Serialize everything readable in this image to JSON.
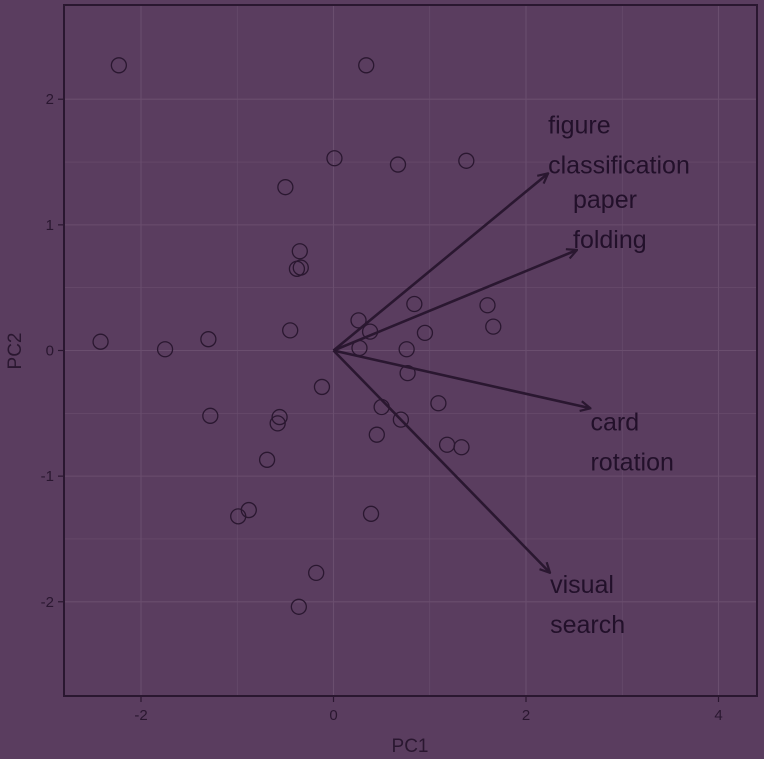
{
  "colors": {
    "background": "#5a3d5f",
    "panel": "#5a3d5f",
    "grid": "#6a4e6e",
    "ink": "#2a1730"
  },
  "chart_data": {
    "type": "scatter",
    "title": "",
    "xlabel": "PC1",
    "ylabel": "PC2",
    "xlim": [
      -2.8,
      4.4
    ],
    "ylim": [
      -2.75,
      2.75
    ],
    "xticks": [
      -2,
      0,
      2,
      4
    ],
    "yticks": [
      -2,
      -1,
      0,
      1,
      2
    ],
    "grid": true,
    "legend": "none",
    "points": [
      {
        "x": -2.23,
        "y": 2.27
      },
      {
        "x": 0.34,
        "y": 2.27
      },
      {
        "x": 0.01,
        "y": 1.53
      },
      {
        "x": 0.67,
        "y": 1.48
      },
      {
        "x": 1.38,
        "y": 1.51
      },
      {
        "x": -0.5,
        "y": 1.3
      },
      {
        "x": -0.35,
        "y": 0.79
      },
      {
        "x": -0.38,
        "y": 0.65
      },
      {
        "x": -0.34,
        "y": 0.66
      },
      {
        "x": 0.84,
        "y": 0.37
      },
      {
        "x": 1.6,
        "y": 0.36
      },
      {
        "x": 1.66,
        "y": 0.19
      },
      {
        "x": 0.26,
        "y": 0.24
      },
      {
        "x": 0.38,
        "y": 0.15
      },
      {
        "x": 0.95,
        "y": 0.14
      },
      {
        "x": -0.45,
        "y": 0.16
      },
      {
        "x": -2.42,
        "y": 0.07
      },
      {
        "x": -1.75,
        "y": 0.01
      },
      {
        "x": -1.3,
        "y": 0.09
      },
      {
        "x": 0.27,
        "y": 0.02
      },
      {
        "x": 0.76,
        "y": 0.01
      },
      {
        "x": -0.12,
        "y": -0.29
      },
      {
        "x": 0.77,
        "y": -0.18
      },
      {
        "x": -1.28,
        "y": -0.52
      },
      {
        "x": -0.56,
        "y": -0.53
      },
      {
        "x": -0.58,
        "y": -0.58
      },
      {
        "x": 0.5,
        "y": -0.45
      },
      {
        "x": 1.09,
        "y": -0.42
      },
      {
        "x": 0.7,
        "y": -0.55
      },
      {
        "x": 0.45,
        "y": -0.67
      },
      {
        "x": 1.18,
        "y": -0.75
      },
      {
        "x": 1.33,
        "y": -0.77
      },
      {
        "x": -0.69,
        "y": -0.87
      },
      {
        "x": -0.99,
        "y": -1.32
      },
      {
        "x": -0.88,
        "y": -1.27
      },
      {
        "x": 0.39,
        "y": -1.3
      },
      {
        "x": -0.18,
        "y": -1.77
      },
      {
        "x": -0.36,
        "y": -2.04
      }
    ],
    "vectors": [
      {
        "lines": [
          "figure",
          "classification"
        ],
        "x": 2.23,
        "y": 1.41
      },
      {
        "lines": [
          "paper",
          "folding"
        ],
        "x": 2.53,
        "y": 0.8
      },
      {
        "lines": [
          "card",
          "rotation"
        ],
        "x": 2.67,
        "y": -0.46
      },
      {
        "lines": [
          "visual",
          "search"
        ],
        "x": 2.25,
        "y": -1.77
      }
    ]
  }
}
